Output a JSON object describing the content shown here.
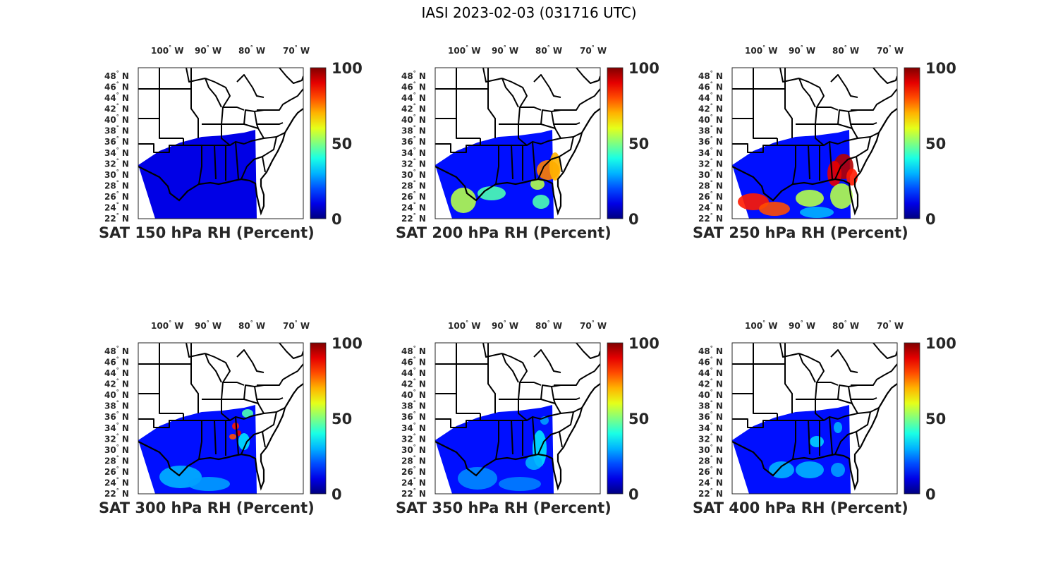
{
  "title": "IASI 2023-02-03 (031716 UTC)",
  "colorbar": {
    "colormap": "jet",
    "ticks": [
      "0",
      "50",
      "100"
    ],
    "range": [
      0,
      100
    ]
  },
  "map": {
    "lon_ticks": [
      "100",
      "90",
      "80",
      "70"
    ],
    "lon_hemisphere": "W",
    "lat_ticks": [
      "48",
      "46",
      "44",
      "42",
      "40",
      "38",
      "36",
      "34",
      "32",
      "30",
      "28",
      "26",
      "24",
      "22"
    ],
    "lat_hemisphere": "N",
    "degree_symbol": "°"
  },
  "panels": [
    {
      "label": "SAT 150 hPa RH (Percent)",
      "level_hpa": 150,
      "features": []
    },
    {
      "label": "SAT 200 hPa RH (Percent)",
      "level_hpa": 200,
      "features": [
        "moist band across gulf",
        "moist patches over southeast"
      ]
    },
    {
      "label": "SAT 250 hPa RH (Percent)",
      "level_hpa": 250,
      "features": [
        "saturated band over Carolinas and Georgia",
        "saturated patch over western gulf"
      ]
    },
    {
      "label": "SAT 300 hPa RH (Percent)",
      "level_hpa": 300,
      "features": [
        "few saturated spots over Tennessee"
      ]
    },
    {
      "label": "SAT 350 hPa RH (Percent)",
      "level_hpa": 350,
      "features": [
        "moderate band over Florida"
      ]
    },
    {
      "label": "SAT 400 hPa RH (Percent)",
      "level_hpa": 400,
      "features": [
        "scattered moist patches"
      ]
    }
  ]
}
